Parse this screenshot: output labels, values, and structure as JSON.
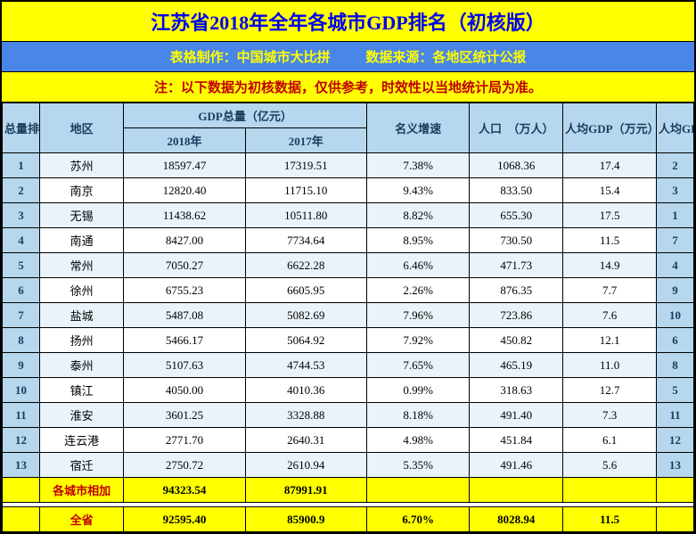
{
  "title": "江苏省2018年全年各城市GDP排名（初核版）",
  "subtitle": {
    "left": "表格制作：中国城市大比拼",
    "right": "数据来源：各地区统计公报"
  },
  "note": "注：以下数据为初核数据，仅供参考，时效性以当地统计局为准。",
  "headers": {
    "rank": "总量排名",
    "region": "地区",
    "gdp_total": "GDP总量（亿元）",
    "gdp2018": "2018年",
    "gdp2017": "2017年",
    "growth": "名义增速",
    "pop": "人口　（万人）",
    "pcgdp": "人均GDP（万元）",
    "pcrank": "人均GDP排名"
  },
  "rows": [
    {
      "rank": "1",
      "region": "苏州",
      "gdp2018": "18597.47",
      "gdp2017": "17319.51",
      "growth": "7.38%",
      "pop": "1068.36",
      "pcgdp": "17.4",
      "pcrank": "2"
    },
    {
      "rank": "2",
      "region": "南京",
      "gdp2018": "12820.40",
      "gdp2017": "11715.10",
      "growth": "9.43%",
      "pop": "833.50",
      "pcgdp": "15.4",
      "pcrank": "3"
    },
    {
      "rank": "3",
      "region": "无锡",
      "gdp2018": "11438.62",
      "gdp2017": "10511.80",
      "growth": "8.82%",
      "pop": "655.30",
      "pcgdp": "17.5",
      "pcrank": "1"
    },
    {
      "rank": "4",
      "region": "南通",
      "gdp2018": "8427.00",
      "gdp2017": "7734.64",
      "growth": "8.95%",
      "pop": "730.50",
      "pcgdp": "11.5",
      "pcrank": "7"
    },
    {
      "rank": "5",
      "region": "常州",
      "gdp2018": "7050.27",
      "gdp2017": "6622.28",
      "growth": "6.46%",
      "pop": "471.73",
      "pcgdp": "14.9",
      "pcrank": "4"
    },
    {
      "rank": "6",
      "region": "徐州",
      "gdp2018": "6755.23",
      "gdp2017": "6605.95",
      "growth": "2.26%",
      "pop": "876.35",
      "pcgdp": "7.7",
      "pcrank": "9"
    },
    {
      "rank": "7",
      "region": "盐城",
      "gdp2018": "5487.08",
      "gdp2017": "5082.69",
      "growth": "7.96%",
      "pop": "723.86",
      "pcgdp": "7.6",
      "pcrank": "10"
    },
    {
      "rank": "8",
      "region": "扬州",
      "gdp2018": "5466.17",
      "gdp2017": "5064.92",
      "growth": "7.92%",
      "pop": "450.82",
      "pcgdp": "12.1",
      "pcrank": "6"
    },
    {
      "rank": "9",
      "region": "泰州",
      "gdp2018": "5107.63",
      "gdp2017": "4744.53",
      "growth": "7.65%",
      "pop": "465.19",
      "pcgdp": "11.0",
      "pcrank": "8"
    },
    {
      "rank": "10",
      "region": "镇江",
      "gdp2018": "4050.00",
      "gdp2017": "4010.36",
      "growth": "0.99%",
      "pop": "318.63",
      "pcgdp": "12.7",
      "pcrank": "5"
    },
    {
      "rank": "11",
      "region": "淮安",
      "gdp2018": "3601.25",
      "gdp2017": "3328.88",
      "growth": "8.18%",
      "pop": "491.40",
      "pcgdp": "7.3",
      "pcrank": "11"
    },
    {
      "rank": "12",
      "region": "连云港",
      "gdp2018": "2771.70",
      "gdp2017": "2640.31",
      "growth": "4.98%",
      "pop": "451.84",
      "pcgdp": "6.1",
      "pcrank": "12"
    },
    {
      "rank": "13",
      "region": "宿迁",
      "gdp2018": "2750.72",
      "gdp2017": "2610.94",
      "growth": "5.35%",
      "pop": "491.46",
      "pcgdp": "5.6",
      "pcrank": "13"
    }
  ],
  "total": {
    "label": "各城市相加",
    "gdp2018": "94323.54",
    "gdp2017": "87991.91"
  },
  "province": {
    "label": "全省",
    "gdp2018": "92595.40",
    "gdp2017": "85900.9",
    "growth": "6.70%",
    "pop": "8028.94",
    "pcgdp": "11.5"
  },
  "colors": {
    "yellow": "#ffff00",
    "header_bg": "#b6d7ee",
    "even_bg": "#eaf3fa",
    "title_color": "#0000ee",
    "note_color": "#c00000",
    "sub_bg": "#4a86e8"
  }
}
